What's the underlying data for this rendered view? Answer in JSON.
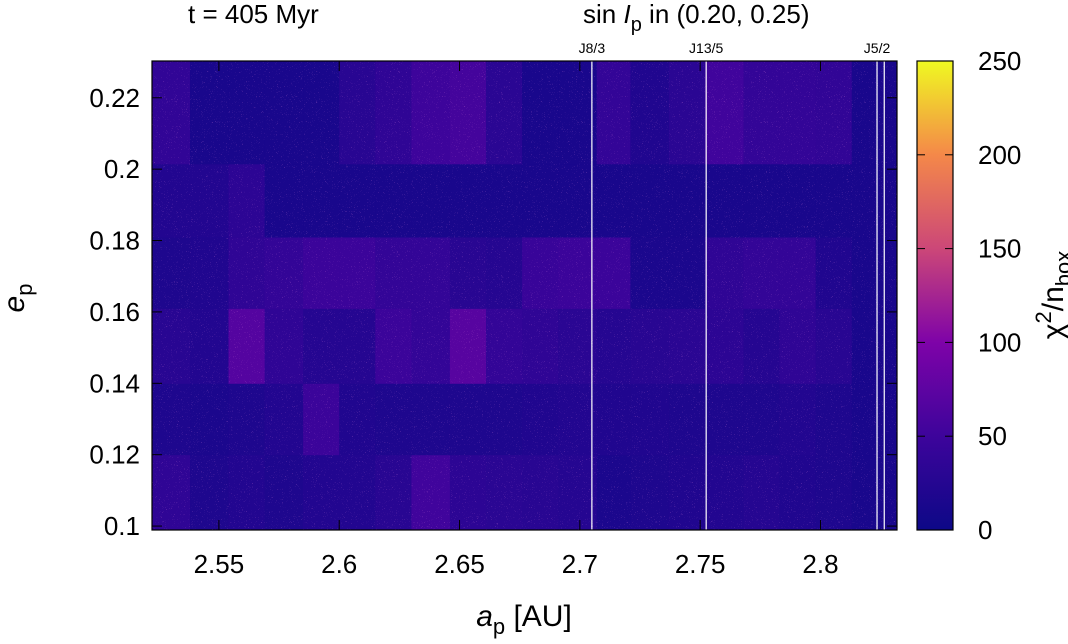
{
  "header": {
    "time_label": "t = 405 Myr",
    "inclination_prefix": "sin ",
    "inclination_symbol": "I",
    "inclination_sub": "p",
    "inclination_suffix": " in (0.20, 0.25)"
  },
  "chart_data": {
    "type": "heatmap",
    "xlabel": {
      "symbol": "a",
      "sub": "p",
      "unit": " [AU]"
    },
    "ylabel": {
      "symbol": "e",
      "sub": "p"
    },
    "colorbar_label": {
      "base": "χ",
      "sup": "2",
      "mid": "/n",
      "sub": "box"
    },
    "xlim": [
      2.5222,
      2.8318
    ],
    "ylim": [
      0.0989,
      0.2303
    ],
    "xticks": [
      2.55,
      2.6,
      2.65,
      2.7,
      2.75,
      2.8
    ],
    "xtick_labels": [
      "2.55",
      "2.6",
      "2.65",
      "2.7",
      "2.75",
      "2.8"
    ],
    "yticks": [
      0.1,
      0.12,
      0.14,
      0.16,
      0.18,
      0.2,
      0.22
    ],
    "ytick_labels": [
      "0.1",
      "0.12",
      "0.14",
      "0.16",
      "0.18",
      "0.2",
      "0.22"
    ],
    "colorbar_range": [
      0,
      250
    ],
    "colorbar_ticks": [
      0,
      50,
      100,
      150,
      200,
      250
    ],
    "colorbar_tick_labels": [
      "0",
      "50",
      "100",
      "150",
      "200",
      "250"
    ],
    "colormap": [
      "#0d0887",
      "#3d049b",
      "#7e03a8",
      "#cc4778",
      "#f48849",
      "#f0f921"
    ],
    "x_edges": [
      2.522,
      2.538,
      2.554,
      2.569,
      2.585,
      2.6,
      2.615,
      2.63,
      2.646,
      2.661,
      2.676,
      2.691,
      2.707,
      2.721,
      2.737,
      2.752,
      2.768,
      2.783,
      2.798,
      2.813,
      2.832
    ],
    "y_edges": [
      0.099,
      0.12,
      0.14,
      0.161,
      0.181,
      0.2015,
      0.2303
    ],
    "values": [
      [
        35,
        18,
        22,
        18,
        22,
        22,
        28,
        52,
        32,
        30,
        28,
        25,
        15,
        18,
        20,
        22,
        25,
        20,
        18,
        12
      ],
      [
        18,
        15,
        18,
        22,
        48,
        20,
        18,
        18,
        18,
        18,
        20,
        22,
        20,
        20,
        18,
        18,
        18,
        22,
        18,
        12
      ],
      [
        28,
        22,
        68,
        35,
        25,
        25,
        48,
        40,
        70,
        40,
        35,
        30,
        25,
        28,
        30,
        32,
        25,
        35,
        28,
        12
      ],
      [
        18,
        20,
        35,
        40,
        48,
        48,
        40,
        40,
        28,
        25,
        45,
        48,
        48,
        15,
        15,
        35,
        40,
        40,
        20,
        12
      ],
      [
        22,
        22,
        32,
        12,
        12,
        12,
        12,
        12,
        12,
        12,
        12,
        12,
        12,
        12,
        12,
        12,
        12,
        12,
        12,
        12
      ],
      [
        38,
        12,
        12,
        12,
        12,
        28,
        35,
        50,
        55,
        30,
        12,
        12,
        40,
        20,
        30,
        52,
        40,
        40,
        38,
        12
      ]
    ],
    "resonances": [
      {
        "label": "J8/3",
        "a": 2.705
      },
      {
        "label": "J13/5",
        "a": 2.7525
      },
      {
        "label": "J5/2",
        "a": 2.8235
      },
      {
        "label": "",
        "a": 2.8265
      }
    ]
  }
}
